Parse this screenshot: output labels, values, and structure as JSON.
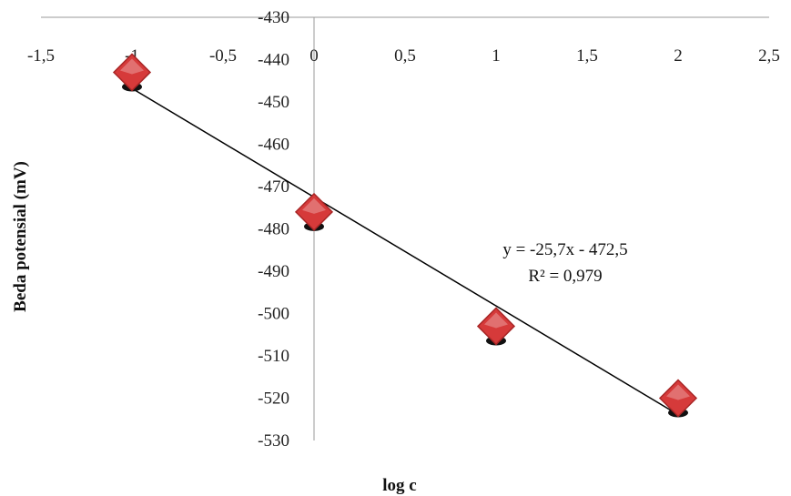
{
  "chart_data": {
    "type": "scatter",
    "xlabel": "log c",
    "ylabel": "Beda potensial (mV)",
    "xlim": [
      -1.5,
      2.5
    ],
    "ylim": [
      -530,
      -430
    ],
    "x_ticks": [
      "-1,5",
      "-1",
      "-0,5",
      "0",
      "0,5",
      "1",
      "1,5",
      "2",
      "2,5"
    ],
    "y_ticks": [
      "-430",
      "-440",
      "-450",
      "-460",
      "-470",
      "-480",
      "-490",
      "-500",
      "-510",
      "-520",
      "-530"
    ],
    "series": [
      {
        "points": [
          {
            "x": -1,
            "y": -443
          },
          {
            "x": 0,
            "y": -476
          },
          {
            "x": 1,
            "y": -503
          },
          {
            "x": 2,
            "y": -520
          }
        ],
        "marker": "diamond",
        "color": "#d63a3a"
      }
    ],
    "trendline": {
      "slope": -25.7,
      "intercept": -472.5,
      "equation": "y = -25,7x - 472,5",
      "r_squared": "R² = 0,979",
      "color": "#000000"
    },
    "grid": false,
    "legend": "none"
  }
}
